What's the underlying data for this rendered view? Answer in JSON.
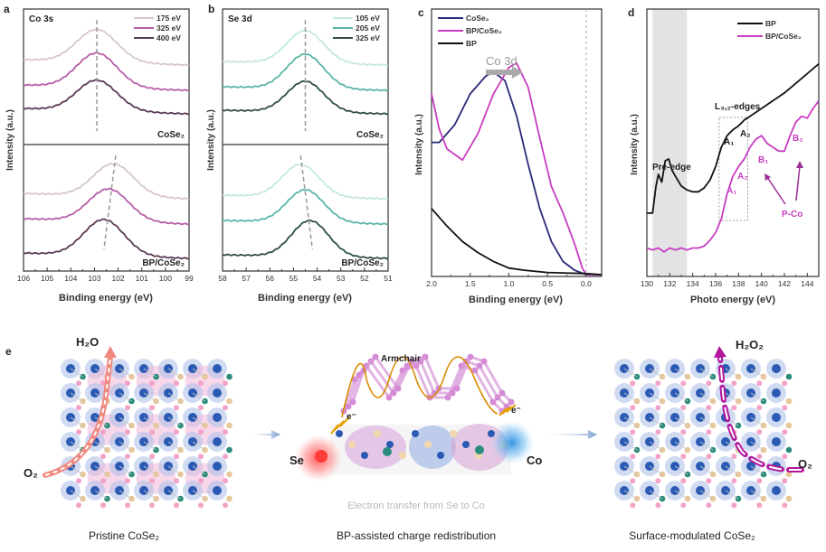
{
  "figure": {
    "panel_labels": [
      "a",
      "b",
      "c",
      "d",
      "e"
    ],
    "colors": {
      "a_light": "#d8c4d4",
      "a_mid": "#b65ea6",
      "a_dark": "#5b3a56",
      "b_light": "#c5e7e3",
      "b_mid": "#5ab4a7",
      "b_dark": "#2f4d4a",
      "c_cose2": "#2a2a7a",
      "c_bpcose2": "#c83cc0",
      "c_bp": "#111111",
      "d_bp": "#111111",
      "d_bpcose2": "#c83cc0",
      "shade": "#e3e3e3",
      "dashed": "#999999"
    }
  },
  "chart_data": [
    {
      "id": "a",
      "type": "line",
      "title": "Co 3s",
      "xlabel": "Binding energy (eV)",
      "ylabel": "Intensity (a.u.)",
      "xlim": [
        106,
        99
      ],
      "xticks": [
        "106",
        "105",
        "104",
        "103",
        "102",
        "101",
        "100",
        "99"
      ],
      "legend": [
        "175 eV",
        "325 eV",
        "400 eV"
      ],
      "legend_position": "top-right",
      "subpanels": [
        {
          "label": "CoSe₂",
          "peak_positions": [
            102.9,
            102.9,
            102.9
          ],
          "dashed_line": [
            102.9,
            102.9
          ]
        },
        {
          "label": "BP/CoSe₂",
          "peak_positions": [
            102.2,
            102.4,
            102.6
          ],
          "dashed_line": [
            102.1,
            102.6
          ]
        }
      ]
    },
    {
      "id": "b",
      "type": "line",
      "title": "Se 3d",
      "xlabel": "Binding energy (eV)",
      "ylabel": "Intensity (a.u.)",
      "xlim": [
        58,
        51
      ],
      "xticks": [
        "58",
        "57",
        "56",
        "55",
        "54",
        "53",
        "52",
        "51"
      ],
      "legend": [
        "105 eV",
        "205 eV",
        "325 eV"
      ],
      "legend_position": "top-right",
      "subpanels": [
        {
          "label": "CoSe₂",
          "peak_positions": [
            54.5,
            54.5,
            54.5
          ],
          "dashed_line": [
            54.5,
            54.5
          ]
        },
        {
          "label": "BP/CoSe₂",
          "peak_positions": [
            54.7,
            54.5,
            54.3
          ],
          "dashed_line": [
            54.7,
            54.2
          ]
        }
      ]
    },
    {
      "id": "c",
      "type": "line",
      "title": "",
      "annotation": "Co 3d",
      "xlabel": "Binding energy (eV)",
      "ylabel": "Intensity (a.u.)",
      "xlim": [
        2.0,
        -0.2
      ],
      "xticks": [
        "2.0",
        "1.5",
        "1.0",
        "0.5",
        "0.0"
      ],
      "legend_position": "top-left",
      "series": [
        {
          "name": "CoSe₂",
          "peak_x": 1.2,
          "points": [
            [
              2.0,
              0.6
            ],
            [
              1.9,
              0.6
            ],
            [
              1.7,
              0.68
            ],
            [
              1.5,
              0.82
            ],
            [
              1.3,
              0.9
            ],
            [
              1.2,
              0.92
            ],
            [
              1.05,
              0.88
            ],
            [
              0.9,
              0.72
            ],
            [
              0.75,
              0.5
            ],
            [
              0.6,
              0.3
            ],
            [
              0.45,
              0.15
            ],
            [
              0.3,
              0.06
            ],
            [
              0.15,
              0.02
            ],
            [
              0.0,
              0.0
            ],
            [
              -0.2,
              0.0
            ]
          ]
        },
        {
          "name": "BP/CoSe₂",
          "peak_x": 0.9,
          "points": [
            [
              2.0,
              0.82
            ],
            [
              1.9,
              0.66
            ],
            [
              1.8,
              0.57
            ],
            [
              1.6,
              0.52
            ],
            [
              1.4,
              0.64
            ],
            [
              1.2,
              0.82
            ],
            [
              1.0,
              0.94
            ],
            [
              0.9,
              0.96
            ],
            [
              0.75,
              0.85
            ],
            [
              0.6,
              0.62
            ],
            [
              0.45,
              0.4
            ],
            [
              0.3,
              0.28
            ],
            [
              0.15,
              0.14
            ],
            [
              0.05,
              0.03
            ],
            [
              0.0,
              0.0
            ],
            [
              -0.2,
              0.0
            ]
          ]
        },
        {
          "name": "BP",
          "points": [
            [
              2.0,
              0.3
            ],
            [
              1.8,
              0.22
            ],
            [
              1.6,
              0.15
            ],
            [
              1.4,
              0.1
            ],
            [
              1.2,
              0.06
            ],
            [
              1.0,
              0.03
            ],
            [
              0.8,
              0.02
            ],
            [
              0.5,
              0.01
            ],
            [
              0.0,
              0.005
            ],
            [
              -0.2,
              0.0
            ]
          ]
        }
      ],
      "fermi_level_marker": 0.0
    },
    {
      "id": "d",
      "type": "line",
      "title": "",
      "xlabel": "Photo energy (eV)",
      "ylabel": "Intensity (a.u.)",
      "xlim": [
        130,
        145
      ],
      "xticks": [
        "130",
        "132",
        "134",
        "136",
        "138",
        "140",
        "142",
        "144"
      ],
      "legend": [
        "BP",
        "BP/CoSe₂"
      ],
      "legend_position": "top-right",
      "shaded_region": [
        130.5,
        133.5
      ],
      "shaded_label": "Pre-edge",
      "box_region": [
        136.3,
        138.8
      ],
      "box_label": "L₃,₂-edges",
      "annotations": [
        "A₁",
        "A₂",
        "A₁",
        "A₂",
        "B₁",
        "B₂",
        "P-Co"
      ],
      "series": [
        {
          "name": "BP",
          "points": [
            [
              130,
              0.28
            ],
            [
              130.5,
              0.28
            ],
            [
              130.8,
              0.42
            ],
            [
              131.0,
              0.48
            ],
            [
              131.3,
              0.44
            ],
            [
              131.6,
              0.55
            ],
            [
              131.9,
              0.56
            ],
            [
              132.2,
              0.5
            ],
            [
              132.6,
              0.46
            ],
            [
              133.0,
              0.42
            ],
            [
              133.5,
              0.4
            ],
            [
              134.0,
              0.39
            ],
            [
              134.5,
              0.39
            ],
            [
              135.0,
              0.41
            ],
            [
              135.5,
              0.45
            ],
            [
              136.0,
              0.52
            ],
            [
              136.5,
              0.62
            ],
            [
              137.0,
              0.68
            ],
            [
              137.5,
              0.71
            ],
            [
              138.0,
              0.73
            ],
            [
              138.5,
              0.76
            ],
            [
              139.0,
              0.78
            ],
            [
              140.0,
              0.82
            ],
            [
              141.0,
              0.86
            ],
            [
              142.0,
              0.9
            ],
            [
              143.0,
              0.95
            ],
            [
              144.0,
              1.0
            ],
            [
              145.0,
              1.05
            ]
          ]
        },
        {
          "name": "BP/CoSe₂",
          "points": [
            [
              130,
              0.1
            ],
            [
              130.5,
              0.09
            ],
            [
              131.0,
              0.1
            ],
            [
              131.5,
              0.08
            ],
            [
              132.0,
              0.1
            ],
            [
              132.5,
              0.09
            ],
            [
              133.0,
              0.1
            ],
            [
              133.5,
              0.09
            ],
            [
              134.0,
              0.1
            ],
            [
              134.5,
              0.1
            ],
            [
              135.0,
              0.11
            ],
            [
              135.5,
              0.14
            ],
            [
              136.0,
              0.18
            ],
            [
              136.5,
              0.25
            ],
            [
              137.0,
              0.38
            ],
            [
              137.5,
              0.47
            ],
            [
              138.0,
              0.52
            ],
            [
              138.5,
              0.56
            ],
            [
              139.0,
              0.62
            ],
            [
              139.5,
              0.66
            ],
            [
              140.0,
              0.68
            ],
            [
              140.5,
              0.64
            ],
            [
              141.0,
              0.62
            ],
            [
              141.5,
              0.6
            ],
            [
              142.0,
              0.6
            ],
            [
              142.5,
              0.68
            ],
            [
              143.0,
              0.75
            ],
            [
              143.5,
              0.78
            ],
            [
              144.0,
              0.77
            ],
            [
              144.5,
              0.82
            ],
            [
              145.0,
              0.86
            ]
          ]
        }
      ]
    }
  ],
  "panel_e": {
    "stage1_caption": "Pristine CoSe₂",
    "stage2_caption": "BP-assisted charge redistribution",
    "stage3_caption": "Surface-modulated CoSe₂",
    "stage1_reactant": "O₂",
    "stage1_product": "H₂O",
    "stage3_reactant": "O₂",
    "stage3_product": "H₂O₂",
    "armchair_label": "Armchair",
    "se_label": "Se",
    "co_label": "Co",
    "electron_label": "e⁻",
    "transfer_note": "Electron transfer from Se to Co"
  },
  "texts": {
    "a_sub_top": "CoSe₂",
    "a_sub_bottom": "BP/CoSe₂",
    "b_sub_top": "CoSe₂",
    "b_sub_bottom": "BP/CoSe₂",
    "ylabel": "Intensity (a.u.)",
    "xlabel_be": "Binding energy (eV)",
    "xlabel_pe": "Photo energy (eV)",
    "c_annot": "Co 3d",
    "d_pre_edge": "Pre-edge",
    "d_edges": "L₃,₂-edges",
    "d_A1": "A₁",
    "d_A2": "A₂",
    "d_B1": "B₁",
    "d_B2": "B₂",
    "d_PCo": "P-Co",
    "a_title": "Co 3s",
    "b_title": "Se 3d"
  }
}
